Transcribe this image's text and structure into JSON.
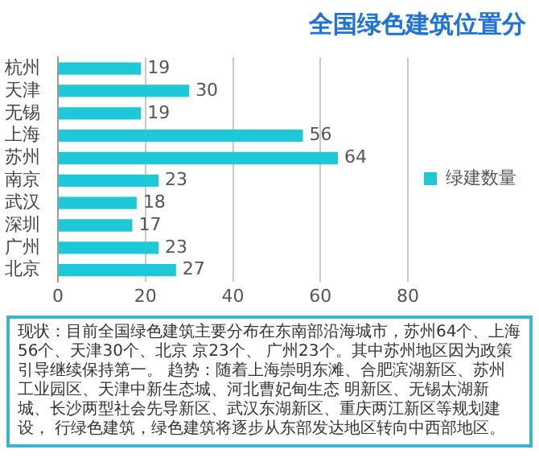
{
  "chart_data": {
    "type": "bar",
    "orientation": "horizontal",
    "title": "全国绿色建筑位置分",
    "categories": [
      "杭州",
      "天津",
      "无锡",
      "上海",
      "苏州",
      "南京",
      "武汉",
      "深圳",
      "广州",
      "北京"
    ],
    "series": [
      {
        "name": "绿建数量",
        "color": "#1ec8d6",
        "values": [
          19,
          30,
          19,
          56,
          64,
          23,
          18,
          17,
          23,
          27
        ]
      }
    ],
    "xlim": [
      0,
      80
    ],
    "xticks": [
      0,
      20,
      40,
      60,
      80
    ],
    "grid": "x",
    "legend": "right",
    "data_labels": true,
    "annotations": [
      "现状：目前全国绿色建筑主要分布在东南部沿海城市，苏州64个、上海56个、天津30个、北京",
      "京23个、 广州23个。其中苏州地区因为政策引导继续保持第一。",
      "趋势：随着上海崇明东滩、合肥滨湖新区、苏州工业园区、天津中新生态城、河北曹妃甸生态",
      "明新区、无锡太湖新城、长沙两型社会先导新区、武汉东湖新区、重庆两江新区等规划建设，",
      "行绿色建筑，绿色建筑将逐步从东部发达地区转向中西部地区。"
    ]
  }
}
